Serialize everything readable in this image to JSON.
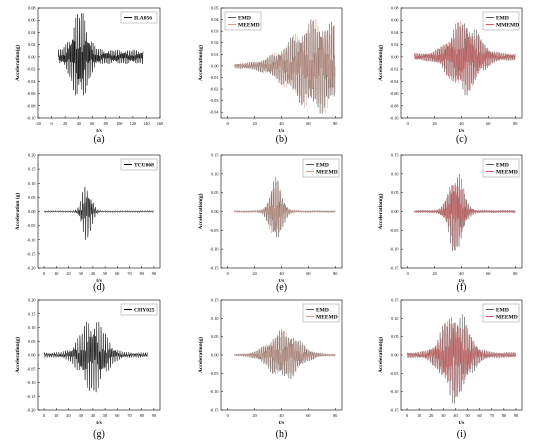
{
  "chart_data": [
    {
      "label": "(a)",
      "type": "line",
      "legend": [
        {
          "name": "ILA056",
          "color": "#000000"
        }
      ],
      "xlabel": "t/s",
      "ylabel": "Acceleration(g)",
      "xticks": [
        "-20",
        "0",
        "20",
        "40",
        "60",
        "80",
        "100",
        "120",
        "140",
        "160"
      ],
      "yticks": [
        "0.08",
        "0.06",
        "0.04",
        "0.02",
        "0.00",
        "-0.02",
        "-0.04",
        "-0.06",
        "-0.08",
        "-0.10"
      ],
      "xlim": [
        -20,
        160
      ],
      "ylim": [
        -0.1,
        0.08
      ],
      "grid": false,
      "legend_position": "top-right",
      "series": [
        {
          "name": "ILA056",
          "color": "#000000",
          "t_start": 10,
          "t_end": 135,
          "peak": 0.07,
          "center": 42,
          "spread": 15,
          "tail": 0.012
        }
      ]
    },
    {
      "label": "(b)",
      "type": "line",
      "legend": [
        {
          "name": "EMD",
          "color": "#5a5a5a"
        },
        {
          "name": "MEEMD",
          "color": "#d49a8a"
        }
      ],
      "xlabel": "t/s",
      "ylabel": "Acceleration(g)",
      "xticks": [
        "0",
        "20",
        "40",
        "60",
        "80"
      ],
      "yticks": [
        "0.05",
        "0.04",
        "0.03",
        "0.02",
        "0.01",
        "0.00",
        "-0.01",
        "-0.02",
        "-0.03",
        "-0.04"
      ],
      "xlim": [
        -5,
        85
      ],
      "ylim": [
        -0.045,
        0.05
      ],
      "grid": false,
      "legend_position": "top-left",
      "series": [
        {
          "name": "EMD",
          "color": "#5a5a5a",
          "t_start": 5,
          "t_end": 80,
          "peak": 0.04,
          "center": 68,
          "spread": 28,
          "tail": 0.002
        },
        {
          "name": "MEEMD",
          "color": "#d49a8a",
          "t_start": 5,
          "t_end": 80,
          "peak": 0.04,
          "center": 68,
          "spread": 28,
          "tail": 0.002
        }
      ]
    },
    {
      "label": "(c)",
      "type": "line",
      "legend": [
        {
          "name": "EMD",
          "color": "#5a5a5a"
        },
        {
          "name": "MMEMD",
          "color": "#e05a5a"
        }
      ],
      "xlabel": "t/s",
      "ylabel": "Acceleration(g)",
      "xticks": [
        "0",
        "20",
        "40",
        "60",
        "80"
      ],
      "yticks": [
        "0.08",
        "0.06",
        "0.04",
        "0.02",
        "0.00",
        "-0.02",
        "-0.04",
        "-0.06",
        "-0.08",
        "-0.10"
      ],
      "xlim": [
        -5,
        85
      ],
      "ylim": [
        -0.1,
        0.08
      ],
      "grid": false,
      "legend_position": "top-right",
      "series": [
        {
          "name": "EMD",
          "color": "#5a5a5a",
          "t_start": 5,
          "t_end": 80,
          "peak": 0.06,
          "center": 42,
          "spread": 14,
          "tail": 0.006
        },
        {
          "name": "MMEMD",
          "color": "#e05a5a",
          "t_start": 5,
          "t_end": 80,
          "peak": 0.055,
          "center": 42,
          "spread": 14,
          "tail": 0.006
        }
      ]
    },
    {
      "label": "(d)",
      "type": "line",
      "legend": [
        {
          "name": "TCU068",
          "color": "#000000"
        }
      ],
      "xlabel": "t/s",
      "ylabel": "Acceleration (g)",
      "xticks": [
        "0",
        "10",
        "20",
        "30",
        "40",
        "50",
        "60",
        "70",
        "80",
        "90"
      ],
      "yticks": [
        "0.20",
        "0.15",
        "0.10",
        "0.05",
        "0.00",
        "-0.05",
        "-0.10",
        "-0.15",
        "-0.20"
      ],
      "xlim": [
        -5,
        95
      ],
      "ylim": [
        -0.2,
        0.2
      ],
      "grid": false,
      "legend_position": "top-right",
      "series": [
        {
          "name": "TCU068",
          "color": "#000000",
          "t_start": 0,
          "t_end": 90,
          "peak": 0.11,
          "center": 35,
          "spread": 5,
          "tail": 0.004
        }
      ]
    },
    {
      "label": "(e)",
      "type": "line",
      "legend": [
        {
          "name": "EMD",
          "color": "#5a5a5a"
        },
        {
          "name": "MEEMD",
          "color": "#d49a8a"
        }
      ],
      "xlabel": "t/s",
      "ylabel": "Acceleration(g)",
      "xticks": [
        "0",
        "20",
        "40",
        "60",
        "80"
      ],
      "yticks": [
        "0.15",
        "0.10",
        "0.05",
        "0.00",
        "-0.05",
        "-0.10",
        "-0.15"
      ],
      "xlim": [
        -5,
        85
      ],
      "ylim": [
        -0.15,
        0.15
      ],
      "grid": false,
      "legend_position": "top-right",
      "series": [
        {
          "name": "EMD",
          "color": "#5a5a5a",
          "t_start": 5,
          "t_end": 80,
          "peak": 0.09,
          "center": 36,
          "spread": 6,
          "tail": 0.003
        },
        {
          "name": "MEEMD",
          "color": "#d49a8a",
          "t_start": 5,
          "t_end": 80,
          "peak": 0.085,
          "center": 36,
          "spread": 6,
          "tail": 0.003
        }
      ]
    },
    {
      "label": "(f)",
      "type": "line",
      "legend": [
        {
          "name": "EMD",
          "color": "#5a5a5a"
        },
        {
          "name": "MEEMD",
          "color": "#e05a5a"
        }
      ],
      "xlabel": "t/s",
      "ylabel": "Acceleration(g)",
      "xticks": [
        "0",
        "20",
        "40",
        "60",
        "80"
      ],
      "yticks": [
        "0.15",
        "0.10",
        "0.05",
        "0.00",
        "-0.05",
        "-0.10",
        "-0.15"
      ],
      "xlim": [
        -5,
        85
      ],
      "ylim": [
        -0.15,
        0.15
      ],
      "grid": false,
      "legend_position": "top-right",
      "series": [
        {
          "name": "EMD",
          "color": "#5a5a5a",
          "t_start": 5,
          "t_end": 80,
          "peak": 0.12,
          "center": 36,
          "spread": 7,
          "tail": 0.004
        },
        {
          "name": "MEEMD",
          "color": "#e05a5a",
          "t_start": 5,
          "t_end": 80,
          "peak": 0.1,
          "center": 36,
          "spread": 7,
          "tail": 0.004
        }
      ]
    },
    {
      "label": "(g)",
      "type": "line",
      "legend": [
        {
          "name": "CHY025",
          "color": "#000000"
        }
      ],
      "xlabel": "t/s",
      "ylabel": "Acceleration(g)",
      "xticks": [
        "0",
        "10",
        "20",
        "30",
        "40",
        "50",
        "60",
        "70",
        "80",
        "90"
      ],
      "yticks": [
        "0.20",
        "0.15",
        "0.10",
        "0.05",
        "0.00",
        "-0.05",
        "-0.10",
        "-0.15",
        "-0.20"
      ],
      "xlim": [
        -5,
        95
      ],
      "ylim": [
        -0.2,
        0.2
      ],
      "grid": false,
      "legend_position": "top-right",
      "series": [
        {
          "name": "CHY025",
          "color": "#000000",
          "t_start": 0,
          "t_end": 85,
          "peak": 0.14,
          "center": 40,
          "spread": 13,
          "tail": 0.01
        }
      ]
    },
    {
      "label": "(h)",
      "type": "line",
      "legend": [
        {
          "name": "EMD",
          "color": "#5a5a5a"
        },
        {
          "name": "MEEMD",
          "color": "#d49a8a"
        }
      ],
      "xlabel": "t/s",
      "ylabel": "Acceleration(g)",
      "xticks": [
        "0",
        "20",
        "40",
        "60",
        "80"
      ],
      "yticks": [
        "0.15",
        "0.10",
        "0.05",
        "0.00",
        "-0.05",
        "-0.10",
        "-0.15"
      ],
      "xlim": [
        -5,
        85
      ],
      "ylim": [
        -0.15,
        0.15
      ],
      "grid": false,
      "legend_position": "top-right",
      "series": [
        {
          "name": "EMD",
          "color": "#5a5a5a",
          "t_start": 5,
          "t_end": 80,
          "peak": 0.07,
          "center": 42,
          "spread": 15,
          "tail": 0.003
        },
        {
          "name": "MEEMD",
          "color": "#d49a8a",
          "t_start": 5,
          "t_end": 80,
          "peak": 0.065,
          "center": 42,
          "spread": 15,
          "tail": 0.003
        }
      ]
    },
    {
      "label": "(i)",
      "type": "line",
      "legend": [
        {
          "name": "EMD",
          "color": "#5a5a5a"
        },
        {
          "name": "MEEMD",
          "color": "#e05a5a"
        }
      ],
      "xlabel": "t/s",
      "ylabel": "Acceleration(g)",
      "xticks": [
        "0",
        "10",
        "20",
        "30",
        "40",
        "50",
        "60",
        "70",
        "80",
        "90"
      ],
      "yticks": [
        "0.15",
        "0.10",
        "0.05",
        "0.00",
        "-0.05",
        "-0.10",
        "-0.15"
      ],
      "xlim": [
        -5,
        95
      ],
      "ylim": [
        -0.15,
        0.15
      ],
      "grid": false,
      "legend_position": "top-right",
      "series": [
        {
          "name": "EMD",
          "color": "#5a5a5a",
          "t_start": 0,
          "t_end": 90,
          "peak": 0.13,
          "center": 40,
          "spread": 14,
          "tail": 0.008
        },
        {
          "name": "MEEMD",
          "color": "#e05a5a",
          "t_start": 0,
          "t_end": 90,
          "peak": 0.11,
          "center": 40,
          "spread": 14,
          "tail": 0.008
        }
      ]
    }
  ]
}
